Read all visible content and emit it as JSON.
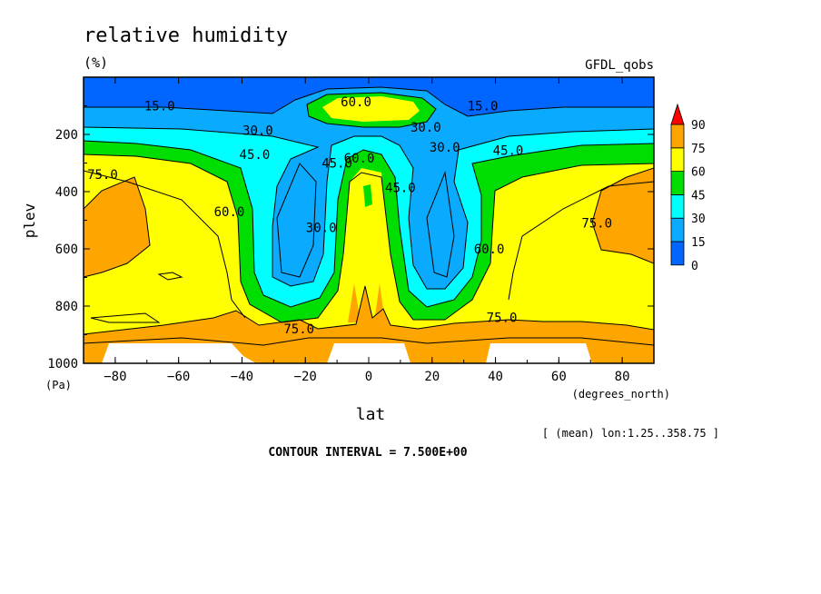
{
  "chart_data": {
    "type": "heatmap",
    "title": "relative humidity",
    "units": "(%)",
    "dataset": "GFDL_qobs",
    "xlabel": "lat",
    "xunits": "(degrees_north)",
    "ylabel": "plev",
    "yunits": "(Pa)",
    "xlim": [
      -90,
      90
    ],
    "ylim": [
      1000,
      0
    ],
    "x_ticks": [
      -80,
      -60,
      -40,
      -20,
      0,
      20,
      40,
      60,
      80
    ],
    "y_ticks": [
      200,
      400,
      600,
      800,
      1000
    ],
    "levels": [
      0,
      15,
      30,
      45,
      60,
      75,
      90
    ],
    "colorbar": {
      "labels": [
        "0",
        "15",
        "30",
        "45",
        "60",
        "75",
        "90"
      ],
      "colors": [
        "#0066ff",
        "#0aaaff",
        "#00ffff",
        "#00dd00",
        "#ffff00",
        "#ffa500",
        "#ff0000"
      ]
    },
    "contour_labels": [
      {
        "text": "15.0",
        "lat": -66,
        "plev": 100
      },
      {
        "text": "15.0",
        "lat": 36,
        "plev": 100
      },
      {
        "text": "30.0",
        "lat": -35,
        "plev": 185
      },
      {
        "text": "30.0",
        "lat": 18,
        "plev": 175
      },
      {
        "text": "30.0",
        "lat": 24,
        "plev": 245
      },
      {
        "text": "30.0",
        "lat": -15,
        "plev": 525
      },
      {
        "text": "45.0",
        "lat": -36,
        "plev": 270
      },
      {
        "text": "45.0",
        "lat": 44,
        "plev": 255
      },
      {
        "text": "45.0",
        "lat": -10,
        "plev": 300
      },
      {
        "text": "45.0",
        "lat": 10,
        "plev": 385
      },
      {
        "text": "60.0",
        "lat": -4,
        "plev": 85
      },
      {
        "text": "60.0",
        "lat": -3,
        "plev": 282
      },
      {
        "text": "60.0",
        "lat": -44,
        "plev": 470
      },
      {
        "text": "60.0",
        "lat": 38,
        "plev": 600
      },
      {
        "text": "75.0",
        "lat": -84,
        "plev": 340
      },
      {
        "text": "75.0",
        "lat": 72,
        "plev": 510
      },
      {
        "text": "75.0",
        "lat": -22,
        "plev": 880
      },
      {
        "text": "75.0",
        "lat": 42,
        "plev": 840
      }
    ],
    "footer": "[ (mean) lon:1.25..358.75 ]",
    "contour_interval": "CONTOUR INTERVAL = 7.500E+00"
  }
}
